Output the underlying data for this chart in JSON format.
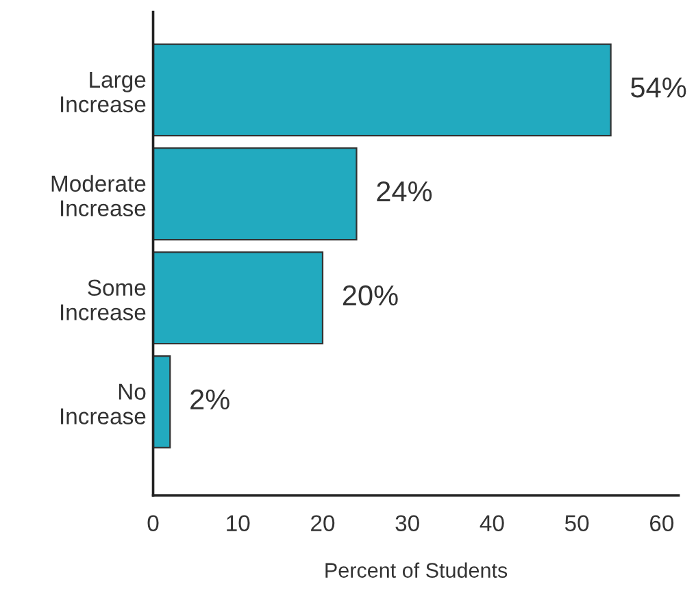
{
  "chart_data": {
    "type": "bar",
    "orientation": "horizontal",
    "xlabel": "Percent of Students",
    "categories": [
      "Large Increase",
      "Moderate Increase",
      "Some Increase",
      "No Increase"
    ],
    "values": [
      54,
      24,
      20,
      2
    ],
    "value_labels": [
      "54%",
      "24%",
      "20%",
      "2%"
    ],
    "color": "#22aabf",
    "xlim": [
      0,
      62
    ],
    "xticks": [
      0,
      10,
      20,
      30,
      40,
      50,
      60
    ],
    "grid": false,
    "legend": false
  }
}
